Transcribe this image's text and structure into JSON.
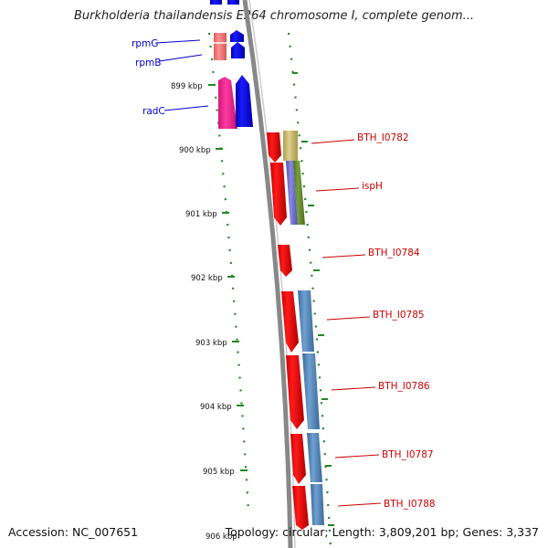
{
  "title": "Burkholderia thailandensis E264 chromosome I, complete genom...",
  "footer": {
    "accession": "Accession: NC_007651",
    "summary": "Topology: circular; Length: 3,809,201 bp; Genes: 3,337"
  },
  "colors": {
    "blue_labels": "#0000cc",
    "red_labels": "#cc0000",
    "backbone": "#888888",
    "ticks": "#228822"
  },
  "kbp_ticks": [
    "899 kbp",
    "900 kbp",
    "901 kbp",
    "902 kbp",
    "903 kbp",
    "904 kbp",
    "905 kbp",
    "906 kbp"
  ],
  "genes_left": [
    {
      "label": "rpmG",
      "strand": "-"
    },
    {
      "label": "rpmB",
      "strand": "-"
    },
    {
      "label": "radC",
      "strand": "-"
    }
  ],
  "genes_right": [
    {
      "label": "BTH_I0782",
      "strand": "+"
    },
    {
      "label": "ispH",
      "strand": "+"
    },
    {
      "label": "BTH_I0784",
      "strand": "+"
    },
    {
      "label": "BTH_I0785",
      "strand": "+"
    },
    {
      "label": "BTH_I0786",
      "strand": "+"
    },
    {
      "label": "BTH_I0787",
      "strand": "+"
    },
    {
      "label": "BTH_I0788",
      "strand": "+"
    }
  ]
}
